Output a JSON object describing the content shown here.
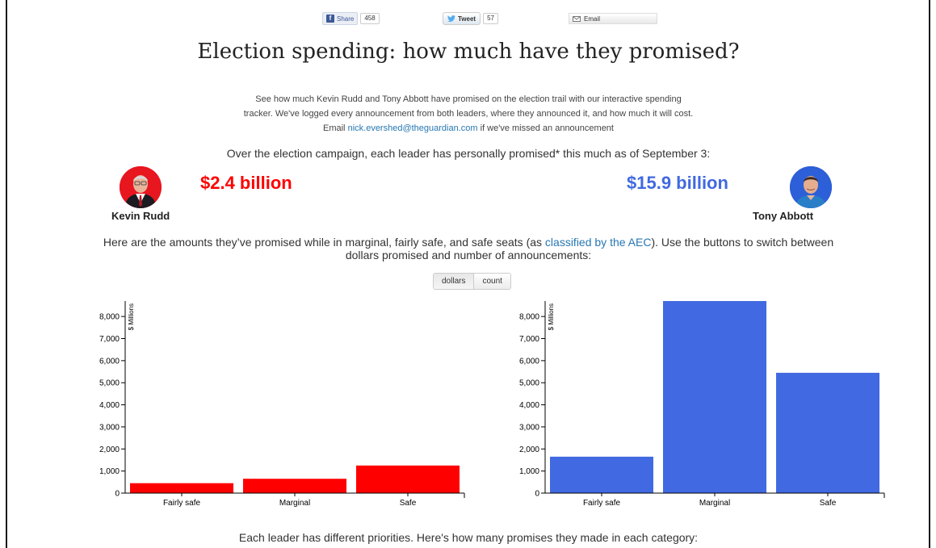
{
  "social": {
    "facebook": {
      "label": "Share",
      "count": "458"
    },
    "twitter": {
      "label": "Tweet",
      "count": "57"
    },
    "email": {
      "label": "Email"
    }
  },
  "page": {
    "title": "Election spending: how much have they promised?",
    "intro_line1": "See how much Kevin Rudd and Tony Abbott have promised on the election trail with our interactive spending",
    "intro_line2": "tracker. We've logged every announcement from both leaders, where they announced it, and how much it will cost.",
    "intro_email_prefix": "Email",
    "intro_email": "nick.evershed@theguardian.com",
    "intro_email_suffix": "if we've missed an announcement",
    "lead_1": "Over the election campaign, each leader has personally promised* this much as of September 3:",
    "lead_2_before": "Here are the amounts they’ve promised while in marginal, fairly safe, and safe seats (as",
    "lead_2_link": "classified by the AEC",
    "lead_2_after": "). Use the buttons to switch between dollars promised and number of announcements:",
    "bottom_text": "Each leader has different priorities. Here's how many promises they made in each category:"
  },
  "leaders": {
    "rudd": {
      "name": "Kevin Rudd",
      "total": "$2.4 billion",
      "color": "#ff0000"
    },
    "abbott": {
      "name": "Tony Abbott",
      "total": "$15.9 billion",
      "color": "#4169e1"
    }
  },
  "toggle": {
    "options": [
      "dollars",
      "count"
    ],
    "selected": "dollars"
  },
  "chart_data": [
    {
      "type": "bar",
      "leader": "Kevin Rudd",
      "categories": [
        "Fairly safe",
        "Marginal",
        "Safe"
      ],
      "values": [
        450,
        650,
        1250
      ],
      "ylabel": "$ Millions",
      "yticks": [
        0,
        1000,
        2000,
        3000,
        4000,
        5000,
        6000,
        7000,
        8000
      ],
      "ytick_labels": [
        "0",
        "1,000",
        "2,000",
        "3,000",
        "4,000",
        "5,000",
        "6,000",
        "7,000",
        "8,000"
      ],
      "ylim": [
        0,
        8700
      ],
      "color": "#ff0000"
    },
    {
      "type": "bar",
      "leader": "Tony Abbott",
      "categories": [
        "Fairly safe",
        "Marginal",
        "Safe"
      ],
      "values": [
        1650,
        8700,
        5450
      ],
      "ylabel": "$ Millions",
      "yticks": [
        0,
        1000,
        2000,
        3000,
        4000,
        5000,
        6000,
        7000,
        8000
      ],
      "ytick_labels": [
        "0",
        "1,000",
        "2,000",
        "3,000",
        "4,000",
        "5,000",
        "6,000",
        "7,000",
        "8,000"
      ],
      "ylim": [
        0,
        8700
      ],
      "color": "#4169e1"
    }
  ]
}
